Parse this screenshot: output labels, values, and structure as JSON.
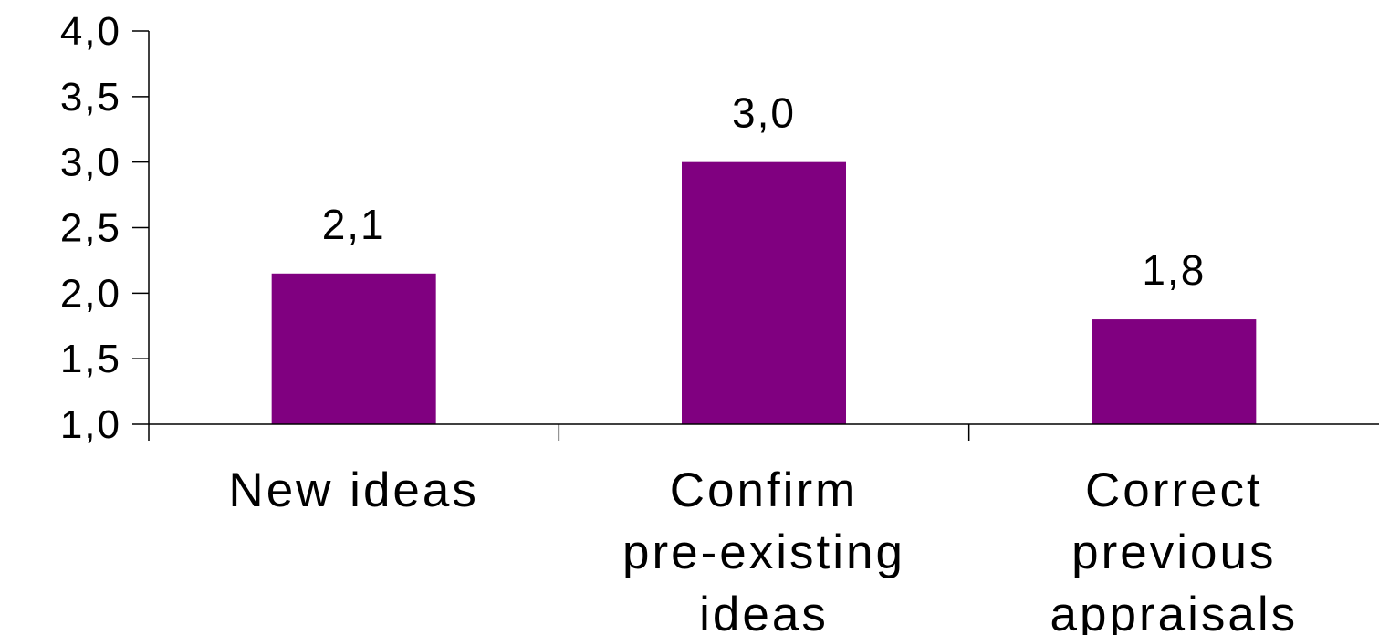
{
  "chart_data": {
    "type": "bar",
    "categories": [
      [
        "New ideas"
      ],
      [
        "Confirm",
        "pre-existing",
        "ideas"
      ],
      [
        "Correct",
        "previous",
        "appraisals"
      ]
    ],
    "values": [
      2.15,
      3.0,
      1.8
    ],
    "data_labels": [
      "2,1",
      "3,0",
      "1,8"
    ],
    "y_ticks": [
      1.0,
      1.5,
      2.0,
      2.5,
      3.0,
      3.5,
      4.0
    ],
    "y_tick_labels": [
      "1,0",
      "1,5",
      "2,0",
      "2,5",
      "3,0",
      "3,5",
      "4,0"
    ],
    "ylim": [
      1.0,
      4.0
    ],
    "grid": false,
    "bar_color": "#800080",
    "axis_color": "#000000"
  }
}
